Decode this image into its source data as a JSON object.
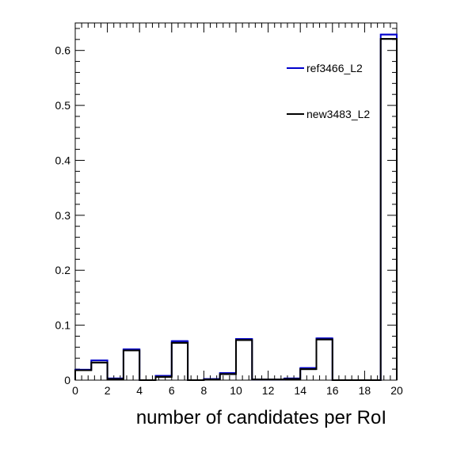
{
  "chart_data": {
    "type": "step-histogram",
    "xlabel": "number of candidates per RoI",
    "ylabel": "",
    "xlim": [
      0,
      20
    ],
    "ylim": [
      0,
      0.65
    ],
    "x_ticks": [
      0,
      2,
      4,
      6,
      8,
      10,
      12,
      14,
      16,
      18,
      20
    ],
    "y_ticks": [
      0,
      0.1,
      0.2,
      0.3,
      0.4,
      0.5,
      0.6
    ],
    "bin_edges": [
      0,
      1,
      2,
      3,
      4,
      5,
      6,
      7,
      8,
      9,
      10,
      11,
      12,
      13,
      14,
      15,
      16,
      17,
      18,
      19,
      20
    ],
    "series": [
      {
        "name": "ref3466_L2",
        "color": "#0000cc",
        "values": [
          0.019,
          0.036,
          0.003,
          0.056,
          0.0,
          0.008,
          0.071,
          0.0,
          0.002,
          0.013,
          0.075,
          0.001,
          0.001,
          0.003,
          0.022,
          0.076,
          0.0,
          0.0,
          0.0,
          0.629
        ]
      },
      {
        "name": "new3483_L2",
        "color": "#000000",
        "values": [
          0.018,
          0.032,
          0.002,
          0.054,
          0.0,
          0.006,
          0.068,
          0.0,
          0.001,
          0.011,
          0.073,
          0.001,
          0.001,
          0.002,
          0.02,
          0.074,
          0.0,
          0.0,
          0.0,
          0.621
        ]
      }
    ],
    "legend_position": "top-right",
    "grid": false
  }
}
